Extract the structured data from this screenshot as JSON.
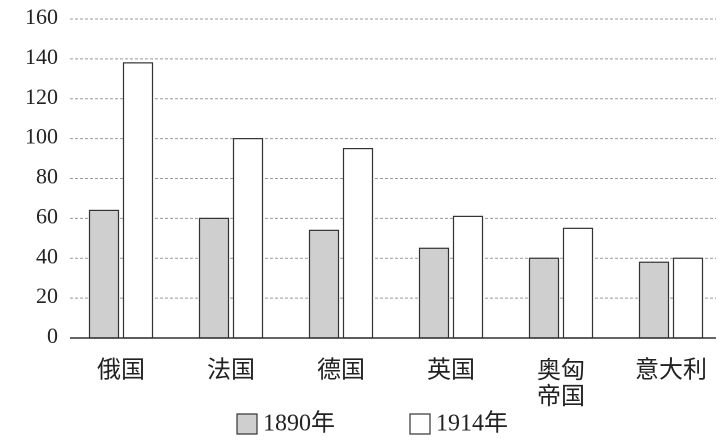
{
  "chart_data": {
    "type": "bar",
    "categories": [
      "俄国",
      "法国",
      "德国",
      "英国",
      "奥匈\n帝国",
      "意大利"
    ],
    "series": [
      {
        "name": "1890年",
        "color": "#cfcfcf",
        "values": [
          64,
          60,
          54,
          45,
          40,
          38
        ]
      },
      {
        "name": "1914年",
        "color": "#ffffff",
        "values": [
          138,
          100,
          95,
          61,
          55,
          40
        ]
      }
    ],
    "ylim": [
      0,
      160
    ],
    "yticks": [
      0,
      20,
      40,
      60,
      80,
      100,
      120,
      140,
      160
    ],
    "grid": true
  }
}
